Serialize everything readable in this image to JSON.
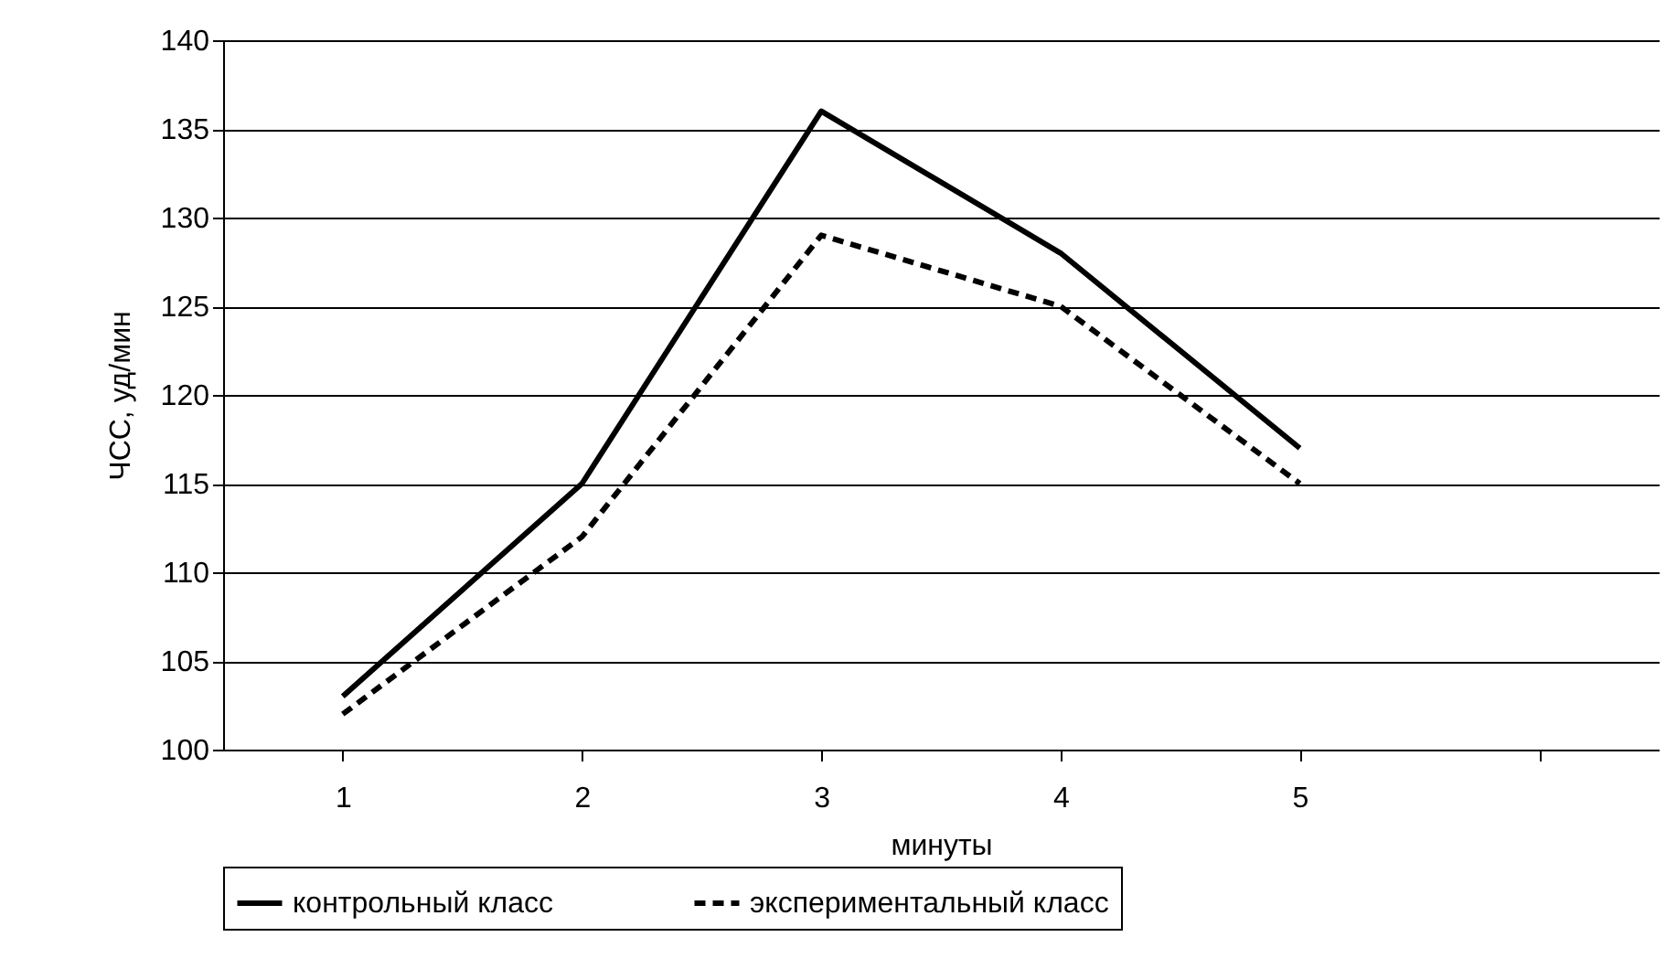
{
  "chart_data": {
    "type": "line",
    "xlabel": "минуты",
    "ylabel": "ЧСС, уд/мин",
    "categories": [
      "1",
      "2",
      "3",
      "4",
      "5",
      null
    ],
    "ylim": [
      100,
      140
    ],
    "yticks": [
      100,
      105,
      110,
      115,
      120,
      125,
      130,
      135,
      140
    ],
    "grid": "y",
    "legend": "bottom",
    "marker": "none",
    "series": [
      {
        "name": "контрольный класс",
        "color": "#000000",
        "line_style": "solid",
        "values": [
          103,
          115,
          136,
          128,
          117,
          null
        ]
      },
      {
        "name": "экспериментальный класс",
        "color": "#000000",
        "line_style": "dashed",
        "values": [
          102,
          112,
          129,
          125,
          115,
          null
        ]
      }
    ]
  }
}
